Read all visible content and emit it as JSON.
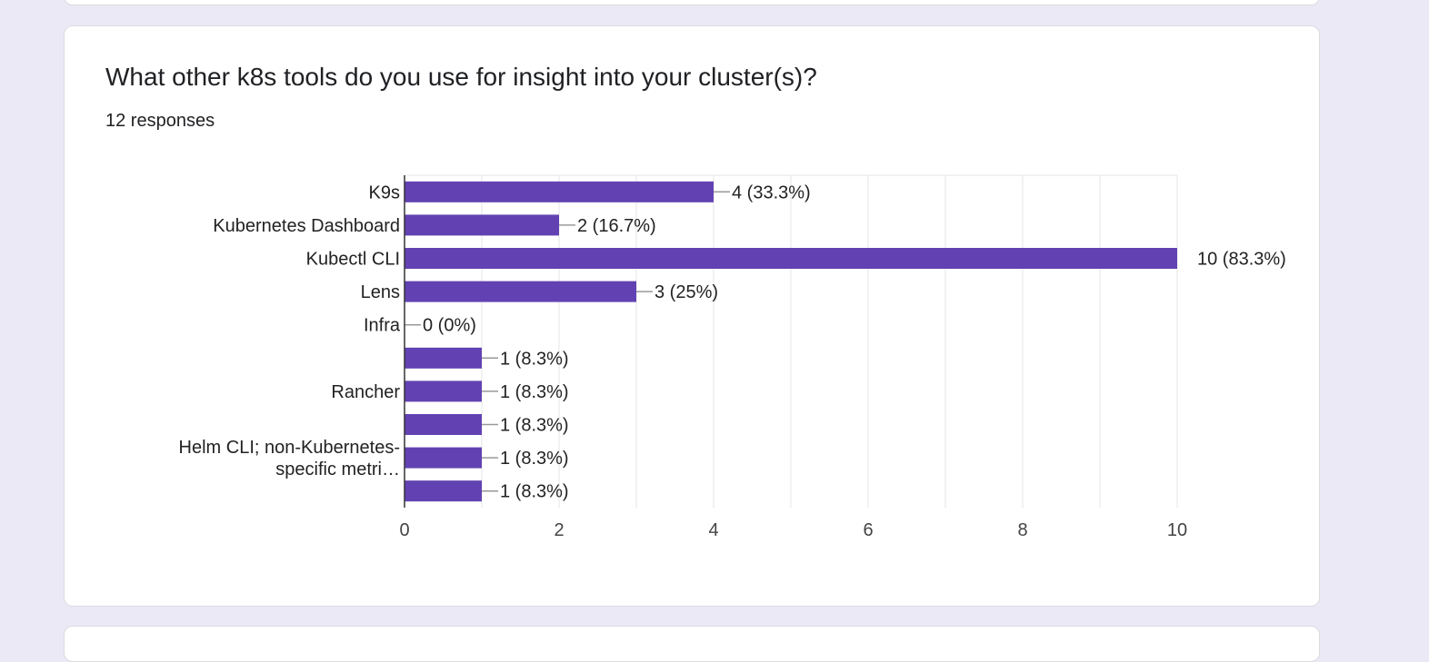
{
  "question": {
    "title": "What other k8s tools do you use for insight into your cluster(s)?",
    "responses": "12 responses"
  },
  "colors": {
    "bar": "#6242b2",
    "background": "#ece9f6",
    "grid": "#e6e6e6",
    "axis": "#333333",
    "connector": "#999999"
  },
  "chart_data": {
    "type": "bar",
    "orientation": "horizontal",
    "title": "",
    "xlabel": "",
    "ylabel": "",
    "categories": [
      "K9s",
      "Kubernetes Dashboard",
      "Kubectl CLI",
      "Lens",
      "Infra",
      "",
      "Rancher",
      "",
      "Helm CLI; non-Kubernetes-specific metri…",
      ""
    ],
    "category_label_lines": [
      [
        "K9s"
      ],
      [
        "Kubernetes Dashboard"
      ],
      [
        "Kubectl CLI"
      ],
      [
        "Lens"
      ],
      [
        "Infra"
      ],
      [],
      [
        "Rancher"
      ],
      [],
      [
        "Helm CLI; non-Kubernetes-",
        "specific metri…"
      ],
      []
    ],
    "values": [
      4,
      2,
      10,
      3,
      0,
      1,
      1,
      1,
      1,
      1
    ],
    "data_labels": [
      "4 (33.3%)",
      "2 (16.7%)",
      "10 (83.3%)",
      "3 (25%)",
      "0 (0%)",
      "1 (8.3%)",
      "1 (8.3%)",
      "1 (8.3%)",
      "1 (8.3%)",
      "1 (8.3%)"
    ],
    "xlim": [
      0,
      10
    ],
    "xticks": [
      "0",
      "2",
      "4",
      "6",
      "8",
      "10"
    ],
    "grid": true,
    "legend": "none"
  }
}
